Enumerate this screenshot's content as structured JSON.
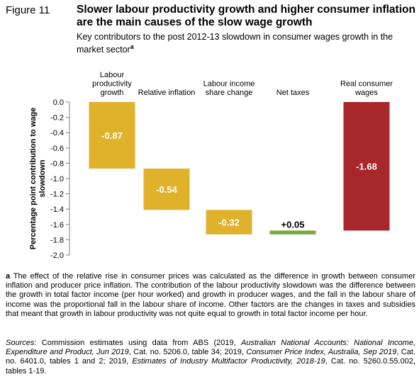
{
  "figure_label": "Figure 11",
  "title": "Slower labour productivity growth and higher consumer inflation are the main causes of the slow wage growth",
  "subtitle": "Key contributors to the post 2012-13 slowdown in consumer wages growth in the market sector",
  "subtitle_mark": "a",
  "colors": {
    "contrib": "#e0b22c",
    "net_taxes": "#7aa840",
    "real": "#a8272b"
  },
  "chart_data": {
    "type": "bar",
    "subtype": "waterfall",
    "ylabel": "Percentage point contribution to wage slowdown",
    "ylim": [
      -2.0,
      0.0
    ],
    "yticks": [
      "0.0",
      "-0.2",
      "-0.4",
      "-0.6",
      "-0.8",
      "-1.0",
      "-1.2",
      "-1.4",
      "-1.6",
      "-1.8",
      "-2.0"
    ],
    "grid": false,
    "categories": [
      [
        "Labour",
        "productivity",
        "growth"
      ],
      [
        "Relative  inflation"
      ],
      [
        "Labour income",
        "share change"
      ],
      [
        "Net taxes"
      ],
      [
        "Real consumer",
        "wages"
      ]
    ],
    "bars": [
      {
        "start": 0.0,
        "end": -0.87,
        "value": -0.87,
        "label": "-0.87",
        "color": "#e0b22c",
        "label_inside": true
      },
      {
        "start": -0.87,
        "end": -1.41,
        "value": -0.54,
        "label": "-0.54",
        "color": "#e0b22c",
        "label_inside": true
      },
      {
        "start": -1.41,
        "end": -1.73,
        "value": -0.32,
        "label": "-0.32",
        "color": "#e0b22c",
        "label_inside": true
      },
      {
        "start": -1.73,
        "end": -1.68,
        "value": 0.05,
        "label": "+0.05",
        "color": "#7aa840",
        "label_inside": false
      },
      {
        "start": 0.0,
        "end": -1.68,
        "value": -1.68,
        "label": "-1.68",
        "color": "#a8272b",
        "label_inside": true
      }
    ]
  },
  "footnote": {
    "mark": "a",
    "text": "The effect of the relative rise in consumer prices was calculated as the difference in growth between consumer inflation and producer price inflation. The contribution of the labour productivity slowdown was the difference between the growth in total factor income (per hour worked) and growth in producer wages, and the fall in the labour share of income was the proportional fall in the labour share of income. Other factors are the changes in taxes and subsidies that meant that growth in labour productivity was not quite equal to growth in total factor income per hour."
  },
  "sources": {
    "label": "Sources",
    "p1": ": Commission estimates using data from ABS (2019, ",
    "i1": "Australian National Accounts: National Income, Expenditure and Product, Jun 2019",
    "p2": ", Cat. no. 5206.0, table 34; 2019, ",
    "i2": "Consumer Price Index, Australia, Sep 2019",
    "p3": ", Cat. no. 6401.0, tables 1 and 2; 2019, ",
    "i3": "Estimates of Industry Multifactor Productivity, 2018-19",
    "p4": ", Cat. no. 5260.0.55.002, tables 1-19."
  }
}
